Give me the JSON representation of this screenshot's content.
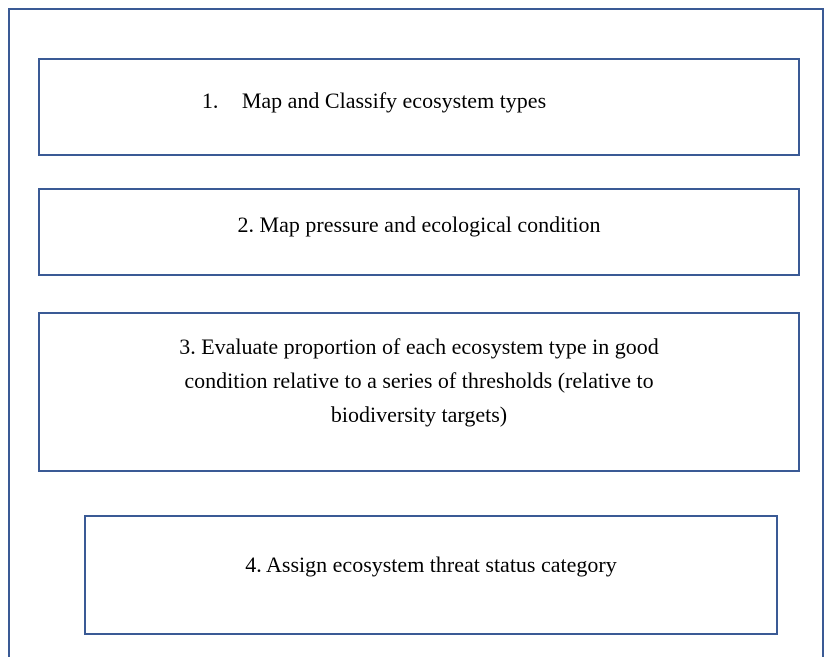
{
  "steps": [
    {
      "number": "1.",
      "label": "Map and Classify ecosystem types"
    },
    {
      "label": "2. Map pressure and ecological condition"
    },
    {
      "lines": [
        "3. Evaluate proportion of each ecosystem type in good",
        "condition relative to a series of thresholds (relative to",
        "biodiversity targets)"
      ]
    },
    {
      "label": "4. Assign ecosystem threat status category"
    }
  ]
}
